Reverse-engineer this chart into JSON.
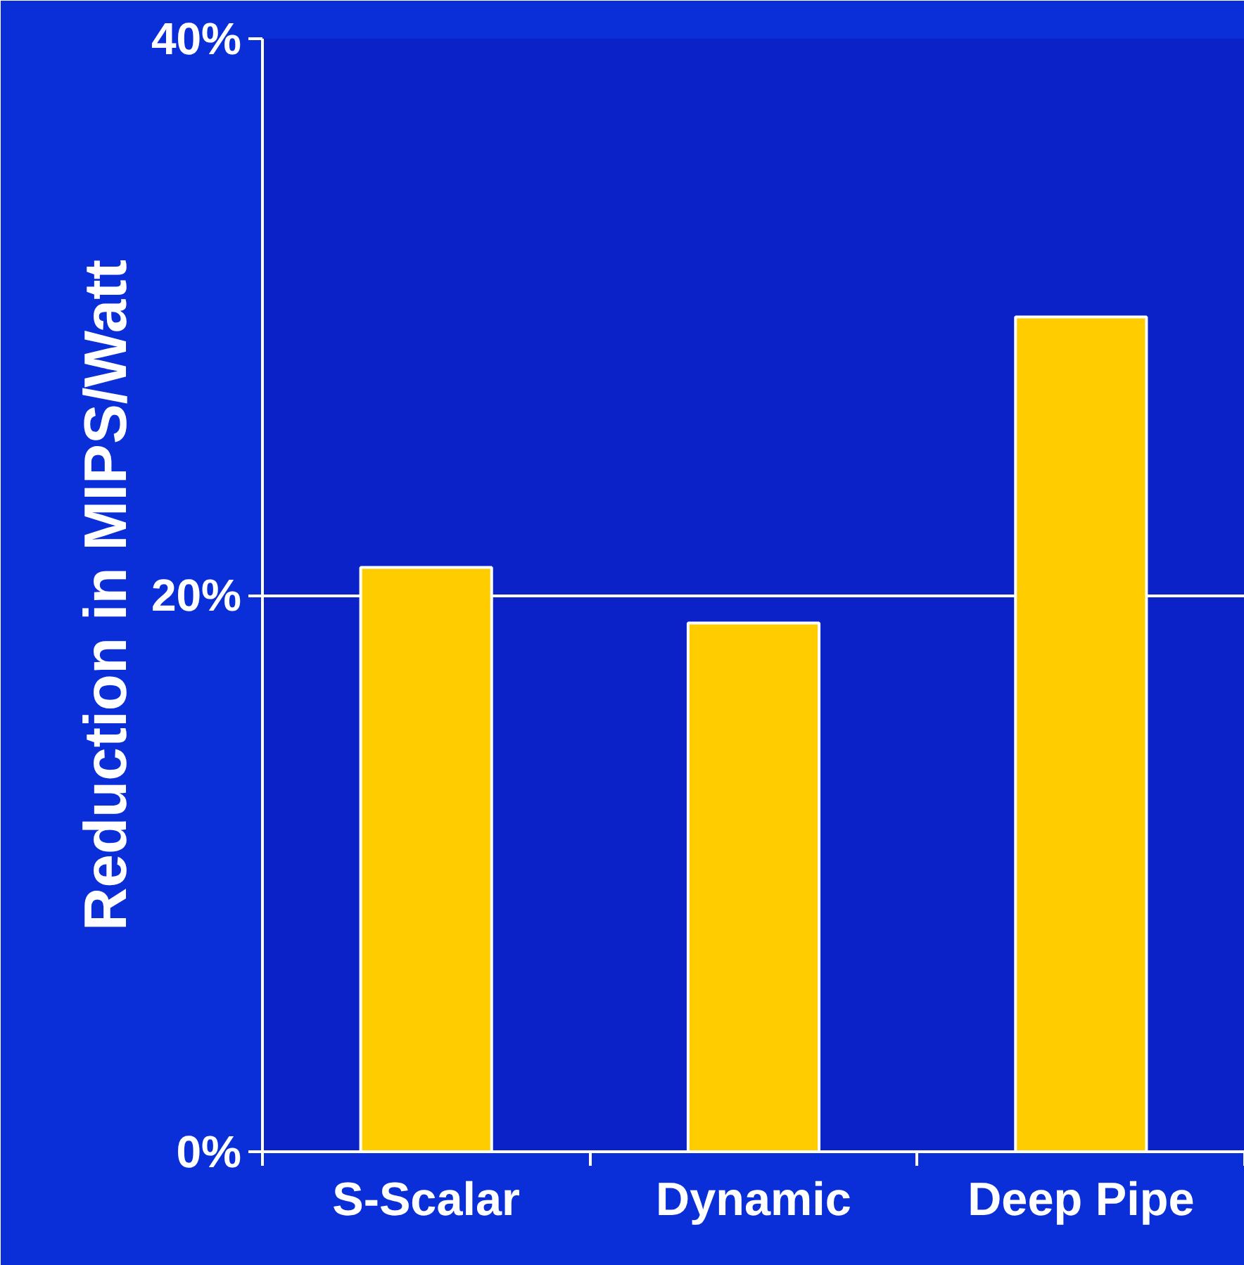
{
  "chart_data": {
    "type": "bar",
    "ylabel": "Reduction in MIPS/Watt",
    "categories": [
      "S-Scalar",
      "Dynamic",
      "Deep Pipe"
    ],
    "values": [
      21,
      19,
      30
    ],
    "color": "#ffcc00",
    "ylim": [
      0,
      40
    ],
    "yticks": [
      {
        "value": 0,
        "label": "0%"
      },
      {
        "value": 20,
        "label": "20%"
      },
      {
        "value": 40,
        "label": "40%"
      }
    ],
    "grid": "y"
  }
}
